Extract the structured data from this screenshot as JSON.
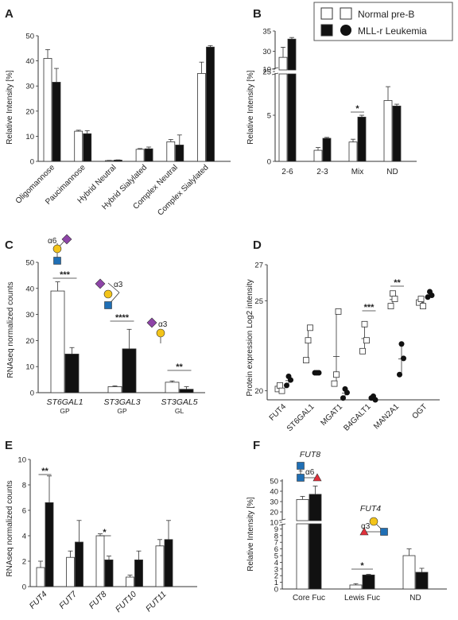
{
  "legend": {
    "items": [
      {
        "label": "Normal pre-B",
        "fill": "#ffffff"
      },
      {
        "label": "MLL-r Leukemia",
        "fill": "#111111"
      }
    ]
  },
  "colors": {
    "normal": "#ffffff",
    "leukemia": "#111111",
    "blue": "#1f6fb5",
    "yellow": "#f3c419",
    "purple": "#8e44a8",
    "red": "#e0303a"
  },
  "chart_data": [
    {
      "id": "A",
      "type": "bar",
      "panel_label": "A",
      "ylabel": "Relative Intensity [%]",
      "ylim": [
        0,
        50
      ],
      "yticks": [
        0,
        10,
        20,
        30,
        40,
        50
      ],
      "categories": [
        "Oligomannose",
        "Paucimannose",
        "Hybrid Neutral",
        "Hybrid Sialylated",
        "Complex Neutral",
        "Complex Sialylated"
      ],
      "series": [
        {
          "name": "Normal pre-B",
          "values": [
            41,
            12,
            0.3,
            4.8,
            7.8,
            35
          ],
          "err": [
            3.5,
            0.4,
            0.1,
            0.3,
            0.9,
            4.5
          ]
        },
        {
          "name": "MLL-r Leukemia",
          "values": [
            31.5,
            11,
            0.5,
            5,
            6.5,
            45.5
          ],
          "err": [
            5.5,
            1.2,
            0.1,
            0.7,
            4,
            0.6
          ]
        }
      ]
    },
    {
      "id": "B",
      "type": "bar",
      "panel_label": "B",
      "ylabel": "Relative Intensity [%]",
      "yticks": [
        0,
        5,
        10,
        25,
        30,
        35
      ],
      "categories": [
        "2-6",
        "2-3",
        "Mix",
        "ND"
      ],
      "series": [
        {
          "name": "Normal pre-B",
          "values": [
            28.5,
            1.2,
            2.1,
            6.6
          ],
          "err": [
            2.5,
            0.3,
            0.3,
            1.5
          ]
        },
        {
          "name": "MLL-r Leukemia",
          "values": [
            33,
            2.5,
            4.8,
            6
          ],
          "err": [
            0.4,
            0.1,
            0.2,
            0.2
          ]
        }
      ],
      "significance": [
        {
          "category": "Mix",
          "label": "*"
        }
      ]
    },
    {
      "id": "C",
      "type": "bar",
      "panel_label": "C",
      "ylabel": "RNAseq normalized counts",
      "ylim": [
        0,
        50
      ],
      "yticks": [
        0,
        10,
        20,
        30,
        40,
        50
      ],
      "categories": [
        "ST6GAL1",
        "ST3GAL3",
        "ST3GAL5"
      ],
      "subcategories": [
        "GP",
        "GP",
        "GL"
      ],
      "linkages": [
        "α6",
        "α3",
        "α3"
      ],
      "series": [
        {
          "name": "Normal pre-B",
          "values": [
            39,
            2.3,
            4
          ],
          "err": [
            3.5,
            0.3,
            0.5
          ]
        },
        {
          "name": "MLL-r Leukemia",
          "values": [
            14.8,
            16.8,
            1.3
          ],
          "err": [
            2.5,
            7.5,
            1
          ]
        }
      ],
      "significance": [
        {
          "category": "ST6GAL1",
          "label": "***"
        },
        {
          "category": "ST3GAL3",
          "label": "****"
        },
        {
          "category": "ST3GAL5",
          "label": "**"
        }
      ]
    },
    {
      "id": "D",
      "type": "scatter",
      "panel_label": "D",
      "ylabel": "Protein expression Log2 intensity",
      "ylim": [
        19.5,
        27
      ],
      "yticks": [
        20,
        25,
        27
      ],
      "categories": [
        "FUT4",
        "ST6GAL1",
        "MGAT1",
        "B4GALT1",
        "MAN2A1",
        "OGT"
      ],
      "series": [
        {
          "name": "Normal pre-B",
          "points": [
            [
              20.1,
              20.3,
              20.0
            ],
            [
              21.7,
              22.8,
              23.5
            ],
            [
              20.4,
              20.9,
              24.4
            ],
            [
              22.2,
              23.7,
              22.8
            ],
            [
              24.7,
              25.4,
              25.1
            ],
            [
              24.9,
              25.1,
              24.7
            ]
          ]
        },
        {
          "name": "MLL-r Leukemia",
          "points": [
            [
              20.3,
              20.8,
              20.6
            ],
            [
              21.0,
              21.0,
              21.0
            ],
            [
              19.6,
              20.1,
              19.9
            ],
            [
              19.6,
              19.7,
              19.5
            ],
            [
              20.9,
              22.6,
              21.8
            ],
            [
              25.2,
              25.5,
              25.3
            ]
          ]
        }
      ],
      "significance": [
        {
          "category": "B4GALT1",
          "label": "***"
        },
        {
          "category": "MAN2A1",
          "label": "**"
        }
      ]
    },
    {
      "id": "E",
      "type": "bar",
      "panel_label": "E",
      "ylabel": "RNAseq normalized counts",
      "ylim": [
        0,
        10
      ],
      "yticks": [
        0,
        2,
        4,
        6,
        8,
        10
      ],
      "categories": [
        "FUT4",
        "FUT7",
        "FUT8",
        "FUT10",
        "FUT11"
      ],
      "series": [
        {
          "name": "Normal pre-B",
          "values": [
            1.5,
            2.3,
            4.0,
            0.75,
            3.2
          ],
          "err": [
            0.5,
            0.5,
            0.15,
            0.15,
            0.5
          ]
        },
        {
          "name": "MLL-r Leukemia",
          "values": [
            6.6,
            3.5,
            2.1,
            2.1,
            3.7
          ],
          "err": [
            2.1,
            1.7,
            0.3,
            0.7,
            1.5
          ]
        }
      ],
      "significance": [
        {
          "category": "FUT4",
          "label": "**"
        },
        {
          "category": "FUT8",
          "label": "*"
        }
      ]
    },
    {
      "id": "F",
      "type": "bar",
      "panel_label": "F",
      "ylabel": "Relative Intensity [%]",
      "yticks": [
        0,
        1,
        2,
        3,
        4,
        5,
        6,
        7,
        8,
        9,
        10,
        20,
        30,
        40,
        50
      ],
      "categories": [
        "Core Fuc",
        "Lewis Fuc",
        "ND"
      ],
      "annotations": [
        "FUT8",
        "FUT4",
        "α6",
        "α3"
      ],
      "series": [
        {
          "name": "Normal pre-B",
          "values": [
            32,
            0.6,
            5
          ],
          "err": [
            3,
            0.2,
            1
          ]
        },
        {
          "name": "MLL-r Leukemia",
          "values": [
            37,
            2.1,
            2.5
          ],
          "err": [
            8,
            0.1,
            0.6
          ]
        }
      ],
      "significance": [
        {
          "category": "Lewis Fuc",
          "label": "*"
        }
      ]
    }
  ]
}
